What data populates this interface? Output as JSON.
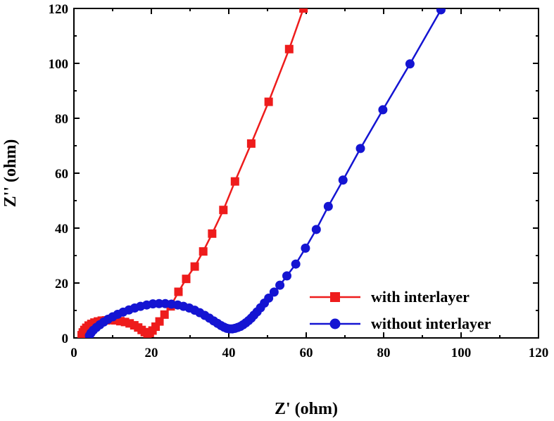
{
  "chart_data": {
    "type": "line",
    "title": "",
    "xlabel": "Z' (ohm)",
    "ylabel": "Z'' (ohm)",
    "xlim": [
      0,
      120
    ],
    "ylim": [
      0,
      120
    ],
    "xticks": [
      0,
      20,
      40,
      60,
      80,
      100,
      120
    ],
    "yticks": [
      0,
      20,
      40,
      60,
      80,
      100,
      120
    ],
    "x_tick_labels": [
      "0",
      "20",
      "40",
      "60",
      "80",
      "100",
      "120"
    ],
    "y_tick_labels": [
      "0",
      "20",
      "40",
      "60",
      "80",
      "100",
      "120"
    ],
    "grid": false,
    "legend_position": "bottom-right",
    "series": [
      {
        "name": "with interlayer",
        "color": "#ee1c1c",
        "marker": "square",
        "x": [
          2.0,
          2.3,
          2.7,
          3.2,
          3.8,
          4.5,
          5.3,
          6.2,
          7.2,
          8.3,
          9.5,
          10.7,
          12.0,
          13.2,
          14.4,
          15.6,
          16.6,
          17.5,
          18.3,
          19.0,
          19.6,
          20.3,
          21.1,
          22.1,
          23.4,
          25.0,
          27.0,
          29.0,
          31.2,
          33.4,
          35.7,
          38.6,
          41.6,
          45.8,
          50.3,
          55.6,
          59.3
        ],
        "y": [
          1.0,
          2.0,
          2.9,
          3.7,
          4.5,
          5.1,
          5.6,
          6.0,
          6.3,
          6.4,
          6.5,
          6.4,
          6.1,
          5.8,
          5.3,
          4.6,
          3.8,
          2.9,
          2.1,
          1.6,
          1.8,
          2.7,
          4.1,
          6.0,
          8.5,
          11.5,
          16.8,
          21.5,
          26.0,
          31.5,
          38.0,
          46.6,
          57.0,
          70.8,
          86.0,
          105.2,
          120.0
        ]
      },
      {
        "name": "without interlayer",
        "color": "#1414d2",
        "marker": "circle",
        "x": [
          4.0,
          4.4,
          5.0,
          5.8,
          6.7,
          7.7,
          8.8,
          10.0,
          11.3,
          12.7,
          14.2,
          15.7,
          17.2,
          18.8,
          20.4,
          22.0,
          23.6,
          25.2,
          26.8,
          28.3,
          29.8,
          31.2,
          32.5,
          33.8,
          35.0,
          36.1,
          37.1,
          38.0,
          38.8,
          39.5,
          40.2,
          40.9,
          41.6,
          42.3,
          43.0,
          43.7,
          44.4,
          45.1,
          45.8,
          46.5,
          47.3,
          48.2,
          49.2,
          50.3,
          51.7,
          53.2,
          55.0,
          57.3,
          59.8,
          62.6,
          65.7,
          69.5,
          74.0,
          79.8,
          86.8,
          94.8
        ],
        "y": [
          0.8,
          1.8,
          2.8,
          3.8,
          4.8,
          5.8,
          6.8,
          7.7,
          8.6,
          9.4,
          10.2,
          10.9,
          11.5,
          12.0,
          12.4,
          12.5,
          12.5,
          12.3,
          12.0,
          11.5,
          10.9,
          10.1,
          9.2,
          8.2,
          7.2,
          6.2,
          5.3,
          4.5,
          3.9,
          3.5,
          3.3,
          3.3,
          3.5,
          3.8,
          4.2,
          4.8,
          5.5,
          6.3,
          7.2,
          8.3,
          9.5,
          11.0,
          12.7,
          14.5,
          16.7,
          19.2,
          22.6,
          26.9,
          32.7,
          39.5,
          47.9,
          57.5,
          69.0,
          83.1,
          99.8,
          119.5
        ]
      }
    ]
  }
}
